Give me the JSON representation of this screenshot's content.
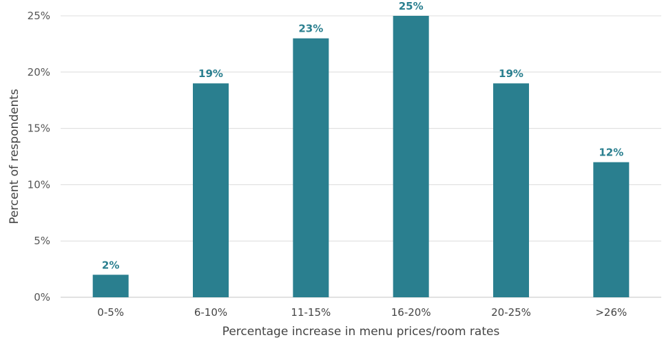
{
  "chart_data": {
    "type": "bar",
    "categories": [
      "0-5%",
      "6-10%",
      "11-15%",
      "16-20%",
      "20-25%",
      ">26%"
    ],
    "values": [
      2,
      19,
      23,
      25,
      19,
      12
    ],
    "value_labels": [
      "2%",
      "19%",
      "23%",
      "25%",
      "19%",
      "12%"
    ],
    "xlabel": "Percentage increase in menu prices/room rates",
    "ylabel": "Percent of respondents",
    "ylim": [
      0,
      25
    ],
    "yticks": [
      0,
      5,
      10,
      15,
      20,
      25
    ],
    "ytick_labels": [
      "0%",
      "5%",
      "10%",
      "15%",
      "20%",
      "25%"
    ],
    "grid": true,
    "legend": "none",
    "colors": {
      "bar": "#2a7f8f",
      "label": "#2a7f8f",
      "grid": "#dcdcdc"
    }
  }
}
